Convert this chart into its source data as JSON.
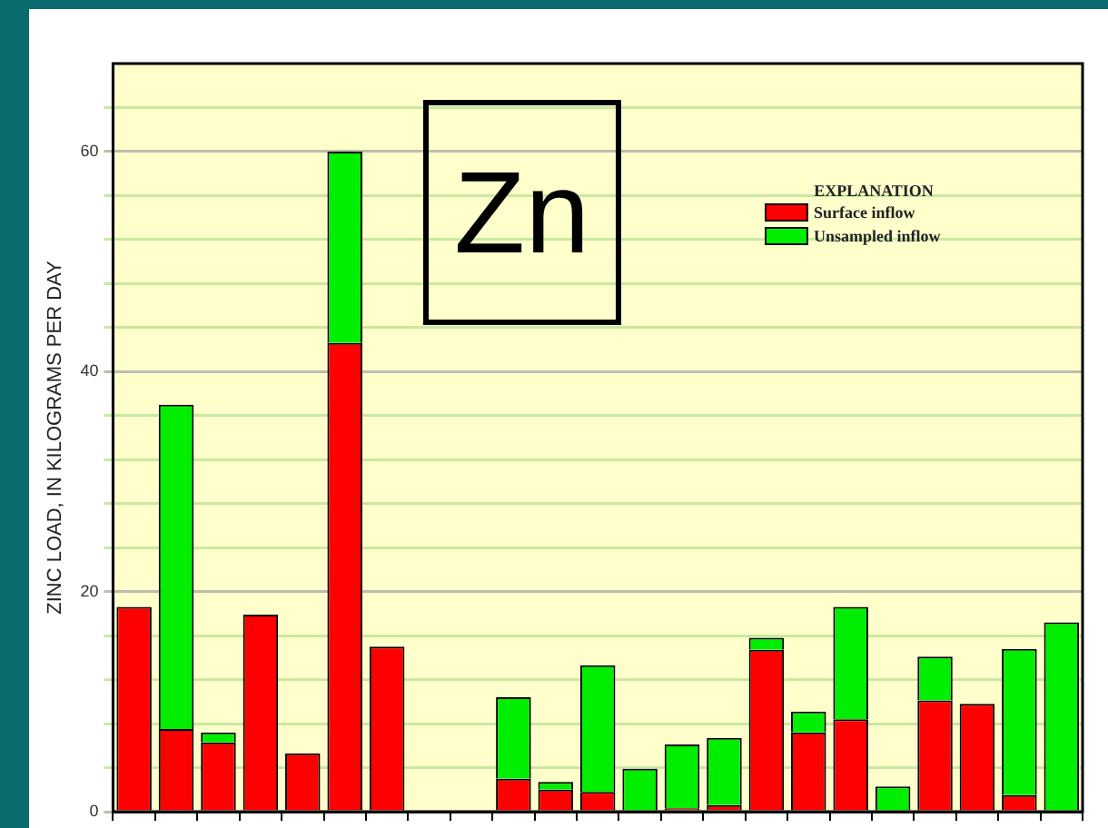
{
  "chart_data": {
    "type": "bar",
    "stacked": true,
    "ylabel": "ZINC LOAD, IN KILOGRAMS PER DAY",
    "legend_title": "EXPLANATION",
    "legend": "top right",
    "annotations": [
      "Zn"
    ],
    "grid": "y",
    "tick_labels": "y",
    "categories": [
      null,
      null,
      null,
      null,
      null,
      null,
      null,
      null,
      null,
      null,
      null,
      null,
      null,
      null,
      null,
      null,
      null,
      null,
      null,
      null,
      null,
      null,
      null
    ],
    "ylim": [
      0,
      68
    ],
    "yticks": [
      0,
      {
        "value": 4,
        "label": null
      },
      {
        "value": 8,
        "label": null
      },
      {
        "value": 12,
        "label": null
      },
      {
        "value": 16,
        "label": null
      },
      20,
      {
        "value": 24,
        "label": null
      },
      {
        "value": 28,
        "label": null
      },
      {
        "value": 32,
        "label": null
      },
      {
        "value": 36,
        "label": null
      },
      40,
      {
        "value": 44,
        "label": null
      },
      {
        "value": 48,
        "label": null
      },
      {
        "value": 52,
        "label": null
      },
      {
        "value": 56,
        "label": null
      },
      60,
      {
        "value": 64,
        "label": null
      }
    ],
    "series": [
      {
        "name": "Surface inflow",
        "color": "#ff0000",
        "values": [
          18.6,
          7.5,
          6.3,
          17.9,
          5.3,
          42.6,
          15.0,
          null,
          null,
          3.0,
          2.0,
          1.8,
          0,
          0.3,
          0.6,
          14.7,
          7.2,
          8.4,
          0,
          10.1,
          9.8,
          1.5,
          0
        ]
      },
      {
        "name": "Unsampled inflow",
        "color": "#00ee00",
        "values": [
          0,
          29.5,
          0.9,
          0,
          0,
          17.4,
          0,
          null,
          null,
          7.4,
          0.7,
          11.5,
          3.9,
          5.8,
          6.1,
          1.1,
          1.9,
          10.2,
          2.3,
          4.0,
          0,
          13.3,
          17.2
        ]
      }
    ]
  }
}
